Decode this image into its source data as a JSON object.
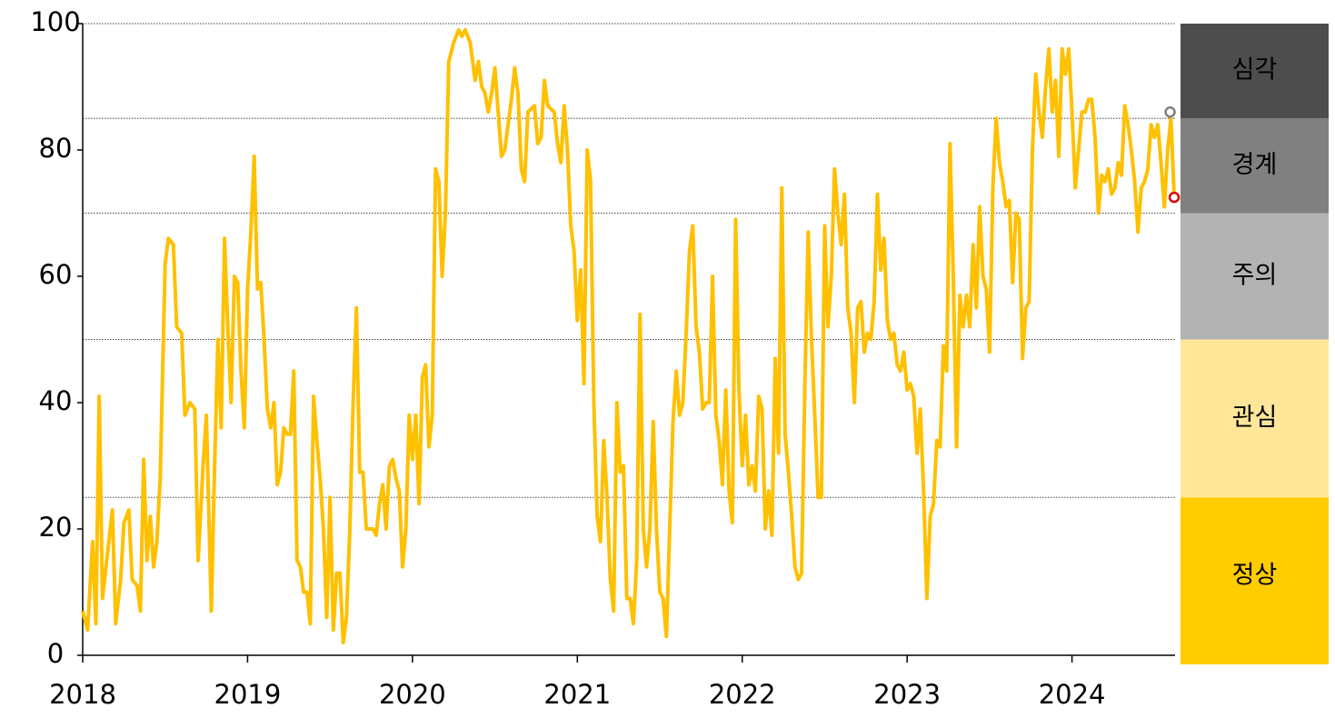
{
  "chart_data": {
    "type": "line",
    "x": [
      2018.0,
      2018.03,
      2018.06,
      2018.08,
      2018.1,
      2018.12,
      2018.15,
      2018.18,
      2018.2,
      2018.23,
      2018.25,
      2018.28,
      2018.3,
      2018.33,
      2018.35,
      2018.37,
      2018.39,
      2018.41,
      2018.43,
      2018.45,
      2018.47,
      2018.5,
      2018.52,
      2018.55,
      2018.57,
      2018.6,
      2018.62,
      2018.65,
      2018.68,
      2018.7,
      2018.73,
      2018.75,
      2018.78,
      2018.8,
      2018.82,
      2018.84,
      2018.86,
      2018.88,
      2018.9,
      2018.92,
      2018.94,
      2018.96,
      2018.98,
      2019.0,
      2019.02,
      2019.04,
      2019.06,
      2019.08,
      2019.1,
      2019.12,
      2019.14,
      2019.16,
      2019.18,
      2019.2,
      2019.22,
      2019.24,
      2019.26,
      2019.28,
      2019.3,
      2019.32,
      2019.34,
      2019.36,
      2019.38,
      2019.4,
      2019.42,
      2019.44,
      2019.46,
      2019.48,
      2019.5,
      2019.52,
      2019.54,
      2019.56,
      2019.58,
      2019.6,
      2019.62,
      2019.64,
      2019.66,
      2019.68,
      2019.7,
      2019.72,
      2019.74,
      2019.76,
      2019.78,
      2019.8,
      2019.82,
      2019.84,
      2019.86,
      2019.88,
      2019.9,
      2019.92,
      2019.94,
      2019.96,
      2019.98,
      2020.0,
      2020.02,
      2020.04,
      2020.06,
      2020.08,
      2020.1,
      2020.12,
      2020.14,
      2020.16,
      2020.18,
      2020.2,
      2020.22,
      2020.25,
      2020.28,
      2020.3,
      2020.32,
      2020.35,
      2020.38,
      2020.4,
      2020.42,
      2020.44,
      2020.46,
      2020.48,
      2020.5,
      2020.52,
      2020.54,
      2020.56,
      2020.6,
      2020.62,
      2020.64,
      2020.66,
      2020.68,
      2020.7,
      2020.74,
      2020.76,
      2020.78,
      2020.8,
      2020.82,
      2020.86,
      2020.88,
      2020.9,
      2020.92,
      2020.94,
      2020.96,
      2020.98,
      2021.0,
      2021.02,
      2021.04,
      2021.06,
      2021.08,
      2021.1,
      2021.12,
      2021.14,
      2021.16,
      2021.18,
      2021.2,
      2021.22,
      2021.24,
      2021.26,
      2021.28,
      2021.3,
      2021.32,
      2021.34,
      2021.36,
      2021.38,
      2021.4,
      2021.42,
      2021.44,
      2021.46,
      2021.48,
      2021.5,
      2021.52,
      2021.54,
      2021.56,
      2021.58,
      2021.6,
      2021.62,
      2021.64,
      2021.66,
      2021.68,
      2021.7,
      2021.72,
      2021.74,
      2021.76,
      2021.78,
      2021.8,
      2021.82,
      2021.84,
      2021.86,
      2021.88,
      2021.9,
      2021.92,
      2021.94,
      2021.96,
      2021.98,
      2022.0,
      2022.02,
      2022.04,
      2022.06,
      2022.08,
      2022.1,
      2022.12,
      2022.14,
      2022.16,
      2022.18,
      2022.2,
      2022.22,
      2022.24,
      2022.26,
      2022.28,
      2022.3,
      2022.32,
      2022.34,
      2022.36,
      2022.38,
      2022.4,
      2022.42,
      2022.44,
      2022.46,
      2022.48,
      2022.5,
      2022.52,
      2022.54,
      2022.56,
      2022.58,
      2022.6,
      2022.62,
      2022.64,
      2022.66,
      2022.68,
      2022.7,
      2022.72,
      2022.74,
      2022.76,
      2022.78,
      2022.8,
      2022.82,
      2022.84,
      2022.86,
      2022.88,
      2022.9,
      2022.92,
      2022.94,
      2022.96,
      2022.98,
      2023.0,
      2023.02,
      2023.04,
      2023.06,
      2023.08,
      2023.1,
      2023.12,
      2023.14,
      2023.16,
      2023.18,
      2023.2,
      2023.22,
      2023.24,
      2023.26,
      2023.28,
      2023.3,
      2023.32,
      2023.34,
      2023.36,
      2023.38,
      2023.4,
      2023.42,
      2023.44,
      2023.46,
      2023.48,
      2023.5,
      2023.52,
      2023.54,
      2023.56,
      2023.58,
      2023.6,
      2023.62,
      2023.64,
      2023.66,
      2023.68,
      2023.7,
      2023.72,
      2023.74,
      2023.76,
      2023.78,
      2023.8,
      2023.82,
      2023.84,
      2023.86,
      2023.88,
      2023.9,
      2023.92,
      2023.94,
      2023.96,
      2023.98,
      2024.0,
      2024.02,
      2024.04,
      2024.06,
      2024.08,
      2024.1,
      2024.12,
      2024.14,
      2024.16,
      2024.18,
      2024.2,
      2024.22,
      2024.24,
      2024.26,
      2024.28,
      2024.3,
      2024.32,
      2024.34,
      2024.36,
      2024.38,
      2024.4,
      2024.42,
      2024.44,
      2024.46,
      2024.48,
      2024.5,
      2024.52,
      2024.54,
      2024.56,
      2024.58,
      2024.6,
      2024.62
    ],
    "values": [
      7,
      4,
      18,
      5,
      41,
      9,
      16,
      23,
      5,
      12,
      21,
      23,
      12,
      11,
      7,
      31,
      15,
      22,
      14,
      18,
      28,
      62,
      66,
      65,
      52,
      51,
      38,
      40,
      39,
      15,
      30,
      38,
      7,
      30,
      50,
      36,
      66,
      52,
      40,
      60,
      59,
      45,
      36,
      58,
      67,
      79,
      58,
      59,
      50,
      39,
      36,
      40,
      27,
      29,
      36,
      35,
      35,
      45,
      15,
      14,
      10,
      10,
      5,
      41,
      34,
      28,
      20,
      6,
      25,
      4,
      13,
      13,
      2,
      6,
      20,
      40,
      55,
      29,
      29,
      20,
      20,
      20,
      19,
      24,
      27,
      20,
      30,
      31,
      28,
      26,
      14,
      20,
      38,
      31,
      38,
      24,
      44,
      46,
      33,
      38,
      77,
      75,
      60,
      70,
      94,
      97,
      99,
      98,
      99,
      97,
      91,
      94,
      90,
      89,
      86,
      89,
      93,
      86,
      79,
      80,
      88,
      93,
      89,
      77,
      75,
      86,
      87,
      81,
      82,
      91,
      87,
      86,
      81,
      78,
      87,
      80,
      68,
      64,
      53,
      61,
      43,
      80,
      75,
      40,
      22,
      18,
      34,
      25,
      12,
      7,
      40,
      29,
      30,
      9,
      9,
      5,
      15,
      54,
      20,
      14,
      20,
      37,
      20,
      10,
      9,
      3,
      20,
      37,
      45,
      38,
      40,
      51,
      64,
      68,
      52,
      48,
      39,
      40,
      40,
      60,
      38,
      34,
      27,
      42,
      26,
      21,
      69,
      42,
      30,
      38,
      27,
      30,
      26,
      41,
      39,
      20,
      26,
      19,
      47,
      32,
      74,
      35,
      29,
      22,
      14,
      12,
      13,
      43,
      67,
      50,
      38,
      25,
      25,
      68,
      52,
      60,
      77,
      70,
      65,
      73,
      55,
      51,
      40,
      55,
      56,
      48,
      51,
      50,
      56,
      73,
      61,
      66,
      53,
      50,
      51,
      46,
      45,
      48,
      42,
      43,
      41,
      32,
      39,
      26,
      9,
      22,
      24,
      34,
      33,
      49,
      45,
      81,
      60,
      33,
      57,
      52,
      57,
      52,
      65,
      55,
      71,
      60,
      58,
      48,
      74,
      85,
      78,
      75,
      71,
      72,
      59,
      70,
      69,
      47,
      55,
      56,
      80,
      92,
      86,
      82,
      90,
      96,
      86,
      91,
      79,
      96,
      92,
      96,
      86,
      74,
      80,
      86,
      86,
      88,
      88,
      82,
      70,
      76,
      75,
      77,
      73,
      74,
      78,
      76,
      87,
      84,
      80,
      75,
      67,
      74,
      75,
      77,
      84,
      82,
      84,
      78,
      71,
      80,
      85,
      72.5
    ],
    "color": "#ffc000",
    "markers": [
      {
        "x": 2024.595,
        "y": 86,
        "color": "#808080"
      },
      {
        "x": 2024.62,
        "y": 72.5,
        "color": "#e00000"
      }
    ],
    "xlim": [
      2018,
      2024.625
    ],
    "xticks": [
      2018,
      2019,
      2020,
      2021,
      2022,
      2023,
      2024
    ],
    "ylim": [
      0,
      100
    ],
    "yticks": [
      0,
      20,
      40,
      60,
      80,
      100
    ],
    "bands": [
      {
        "label": "정상",
        "from": 0,
        "to": 25,
        "color": "#ffcc00"
      },
      {
        "label": "관심",
        "from": 25,
        "to": 50,
        "color": "#ffe699"
      },
      {
        "label": "주의",
        "from": 50,
        "to": 70,
        "color": "#b3b3b3"
      },
      {
        "label": "경계",
        "from": 70,
        "to": 85,
        "color": "#808080"
      },
      {
        "label": "심각",
        "from": 85,
        "to": 100,
        "color": "#4d4d4d"
      }
    ]
  }
}
